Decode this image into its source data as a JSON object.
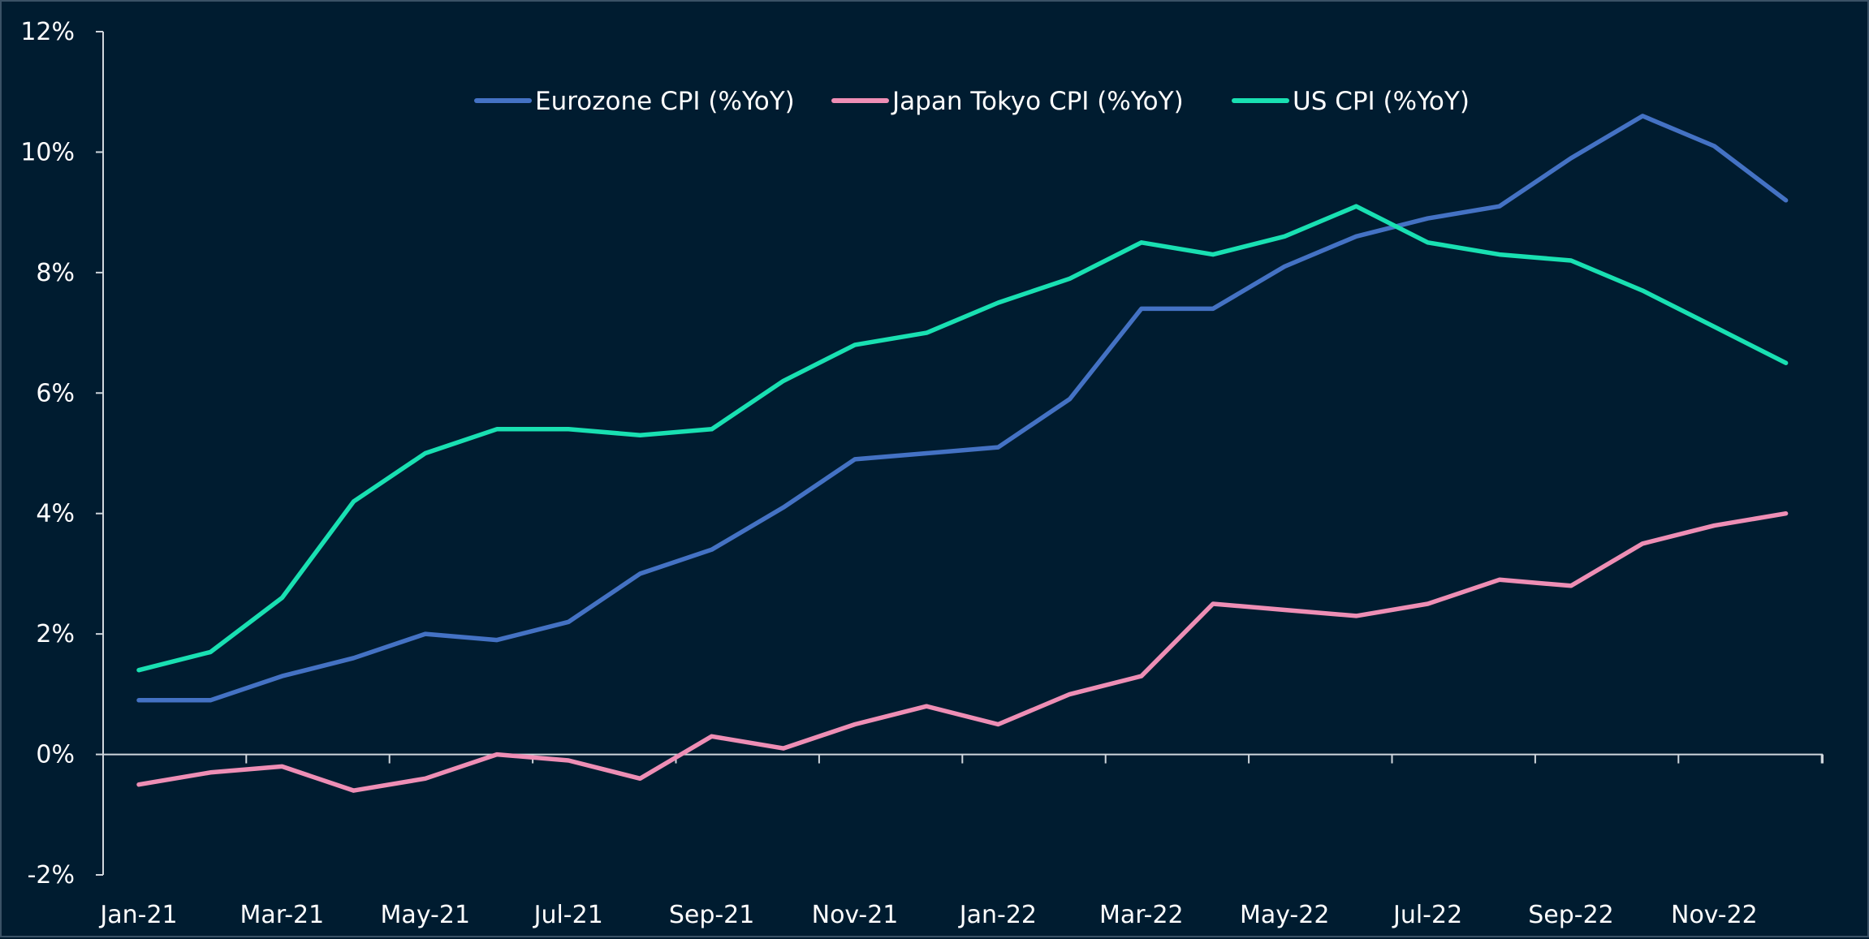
{
  "chart_data": {
    "type": "line",
    "title": "",
    "xlabel": "",
    "ylabel": "",
    "ylim": [
      -2,
      12
    ],
    "yticks": [
      -2,
      0,
      2,
      4,
      6,
      8,
      10,
      12
    ],
    "ytick_labels": [
      "-2%",
      "0%",
      "2%",
      "4%",
      "6%",
      "8%",
      "10%",
      "12%"
    ],
    "x": [
      "Jan-21",
      "Feb-21",
      "Mar-21",
      "Apr-21",
      "May-21",
      "Jun-21",
      "Jul-21",
      "Aug-21",
      "Sep-21",
      "Oct-21",
      "Nov-21",
      "Dec-21",
      "Jan-22",
      "Feb-22",
      "Mar-22",
      "Apr-22",
      "May-22",
      "Jun-22",
      "Jul-22",
      "Aug-22",
      "Sep-22",
      "Oct-22",
      "Nov-22",
      "Dec-22"
    ],
    "xtick_labels": [
      "Jan-21",
      "Mar-21",
      "May-21",
      "Jul-21",
      "Sep-21",
      "Nov-21",
      "Jan-22",
      "Mar-22",
      "May-22",
      "Jul-22",
      "Sep-22",
      "Nov-22"
    ],
    "legend_position": "top-center",
    "grid": false,
    "series": [
      {
        "name": "Eurozone CPI (%YoY)",
        "color": "#4472c4",
        "values": [
          0.9,
          0.9,
          1.3,
          1.6,
          2.0,
          1.9,
          2.2,
          3.0,
          3.4,
          4.1,
          4.9,
          5.0,
          5.1,
          5.9,
          7.4,
          7.4,
          8.1,
          8.6,
          8.9,
          9.1,
          9.9,
          10.6,
          10.1,
          9.2
        ]
      },
      {
        "name": "Japan Tokyo CPI (%YoY)",
        "color": "#ee8eb5",
        "values": [
          -0.5,
          -0.3,
          -0.2,
          -0.6,
          -0.4,
          0.0,
          -0.1,
          -0.4,
          0.3,
          0.1,
          0.5,
          0.8,
          0.5,
          1.0,
          1.3,
          2.5,
          2.4,
          2.3,
          2.5,
          2.9,
          2.8,
          3.5,
          3.8,
          4.0
        ]
      },
      {
        "name": "US CPI (%YoY)",
        "color": "#19e0b2",
        "values": [
          1.4,
          1.7,
          2.6,
          4.2,
          5.0,
          5.4,
          5.4,
          5.3,
          5.4,
          6.2,
          6.8,
          7.0,
          7.5,
          7.9,
          8.5,
          8.3,
          8.6,
          9.1,
          8.5,
          8.3,
          8.2,
          7.7,
          7.1,
          6.5
        ]
      }
    ]
  }
}
